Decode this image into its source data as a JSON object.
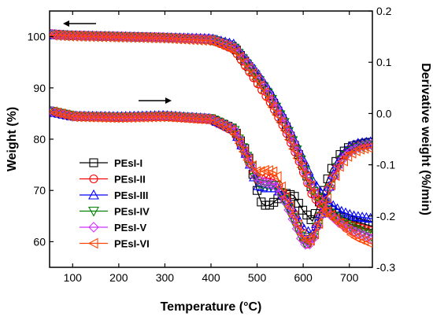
{
  "chart_data": {
    "type": "line",
    "title": "",
    "xlabel": "Temperature (°C)",
    "ylabel_left": "Weight (%)",
    "ylabel_right": "Derivative weight (%/min)",
    "xlim": [
      50,
      750
    ],
    "ylim_left": [
      55,
      105
    ],
    "ylim_right": [
      -0.3,
      0.2
    ],
    "x_ticks": [
      100,
      200,
      300,
      400,
      500,
      600,
      700
    ],
    "y_left_ticks": [
      60,
      70,
      80,
      90,
      100
    ],
    "y_right_ticks": [
      -0.3,
      -0.2,
      -0.1,
      0.0,
      0.1,
      0.2
    ],
    "y_right_tick_labels": [
      "-0.3",
      "-0.2",
      "-0.1",
      "0.0",
      "0.1",
      "0.2"
    ],
    "grid": false,
    "legend_position": "lower-left",
    "arrows": [
      {
        "label": "weight axis indicator",
        "direction": "left",
        "axis": "left"
      },
      {
        "label": "derivative axis indicator",
        "direction": "right",
        "axis": "right"
      }
    ],
    "series": [
      {
        "name": "PEsI-I",
        "color": "#000000",
        "marker": "square",
        "weight": {
          "x": [
            50,
            100,
            200,
            300,
            400,
            450,
            500,
            530,
            560,
            590,
            620,
            650,
            680,
            710,
            750
          ],
          "y": [
            100.5,
            100.2,
            100,
            99.8,
            99.5,
            98,
            92,
            88,
            83,
            77,
            70,
            67,
            65,
            64,
            63
          ]
        },
        "derivative": {
          "x": [
            50,
            100,
            200,
            300,
            400,
            450,
            480,
            500,
            510,
            520,
            530,
            540,
            560,
            580,
            600,
            620,
            640,
            660,
            680,
            700,
            720,
            750
          ],
          "y": [
            0.005,
            -0.005,
            -0.007,
            -0.005,
            -0.01,
            -0.03,
            -0.08,
            -0.15,
            -0.175,
            -0.18,
            -0.178,
            -0.17,
            -0.155,
            -0.16,
            -0.19,
            -0.21,
            -0.16,
            -0.11,
            -0.08,
            -0.065,
            -0.06,
            -0.055
          ]
        }
      },
      {
        "name": "PEsI-II",
        "color": "#ff0000",
        "marker": "circle",
        "weight": {
          "x": [
            50,
            100,
            200,
            300,
            400,
            450,
            500,
            530,
            560,
            590,
            620,
            650,
            680,
            710,
            750
          ],
          "y": [
            100.6,
            100.3,
            100.1,
            99.9,
            99.4,
            97.5,
            91,
            87,
            82,
            76,
            69,
            66,
            64,
            63,
            62
          ]
        },
        "derivative": {
          "x": [
            50,
            100,
            200,
            300,
            400,
            450,
            480,
            500,
            520,
            540,
            560,
            580,
            600,
            610,
            620,
            640,
            660,
            680,
            700,
            720,
            750
          ],
          "y": [
            0.005,
            -0.006,
            -0.008,
            -0.006,
            -0.012,
            -0.035,
            -0.09,
            -0.13,
            -0.125,
            -0.13,
            -0.16,
            -0.2,
            -0.245,
            -0.255,
            -0.24,
            -0.19,
            -0.13,
            -0.09,
            -0.07,
            -0.062,
            -0.06
          ]
        }
      },
      {
        "name": "PEsI-III",
        "color": "#0000ff",
        "marker": "triangle-up",
        "weight": {
          "x": [
            50,
            100,
            200,
            300,
            400,
            450,
            500,
            530,
            560,
            590,
            620,
            650,
            680,
            710,
            750
          ],
          "y": [
            100.4,
            100.2,
            100,
            99.8,
            99.6,
            98.5,
            93,
            89,
            84,
            78,
            72,
            68,
            66,
            65,
            64.5
          ]
        },
        "derivative": {
          "x": [
            50,
            100,
            200,
            300,
            400,
            450,
            480,
            500,
            520,
            540,
            560,
            580,
            600,
            620,
            640,
            660,
            680,
            700,
            720,
            750
          ],
          "y": [
            0.004,
            -0.005,
            -0.006,
            -0.004,
            -0.01,
            -0.03,
            -0.085,
            -0.14,
            -0.145,
            -0.145,
            -0.16,
            -0.19,
            -0.225,
            -0.235,
            -0.19,
            -0.13,
            -0.085,
            -0.065,
            -0.058,
            -0.055
          ]
        }
      },
      {
        "name": "PEsI-IV",
        "color": "#008000",
        "marker": "triangle-down",
        "weight": {
          "x": [
            50,
            100,
            200,
            300,
            400,
            450,
            500,
            530,
            560,
            590,
            620,
            650,
            680,
            710,
            750
          ],
          "y": [
            100.5,
            100.2,
            100,
            99.8,
            99.4,
            97.8,
            92,
            88,
            83,
            77,
            70,
            66,
            64,
            62.5,
            61
          ]
        },
        "derivative": {
          "x": [
            50,
            100,
            200,
            300,
            400,
            450,
            480,
            500,
            520,
            540,
            560,
            580,
            600,
            610,
            620,
            640,
            660,
            680,
            700,
            720,
            750
          ],
          "y": [
            0.005,
            -0.005,
            -0.007,
            -0.005,
            -0.01,
            -0.032,
            -0.088,
            -0.135,
            -0.14,
            -0.14,
            -0.17,
            -0.21,
            -0.25,
            -0.255,
            -0.245,
            -0.2,
            -0.14,
            -0.095,
            -0.075,
            -0.066,
            -0.06
          ]
        }
      },
      {
        "name": "PEsI-V",
        "color": "#cc33ff",
        "marker": "diamond",
        "weight": {
          "x": [
            50,
            100,
            200,
            300,
            400,
            450,
            500,
            530,
            560,
            590,
            620,
            650,
            680,
            710,
            750
          ],
          "y": [
            100.5,
            100.2,
            100,
            99.8,
            99.5,
            98,
            92.5,
            88,
            83,
            77,
            70,
            66,
            63.5,
            62,
            60.5
          ]
        },
        "derivative": {
          "x": [
            50,
            100,
            200,
            300,
            400,
            450,
            480,
            500,
            520,
            540,
            560,
            580,
            600,
            610,
            620,
            640,
            660,
            680,
            700,
            720,
            750
          ],
          "y": [
            0.005,
            -0.005,
            -0.007,
            -0.005,
            -0.01,
            -0.03,
            -0.085,
            -0.13,
            -0.135,
            -0.14,
            -0.17,
            -0.21,
            -0.252,
            -0.258,
            -0.25,
            -0.2,
            -0.14,
            -0.095,
            -0.075,
            -0.066,
            -0.06
          ]
        }
      },
      {
        "name": "PEsI-VI",
        "color": "#ff4500",
        "marker": "triangle-left",
        "weight": {
          "x": [
            50,
            100,
            200,
            300,
            400,
            450,
            500,
            530,
            560,
            590,
            620,
            650,
            680,
            710,
            750
          ],
          "y": [
            100.3,
            100.1,
            99.9,
            99.7,
            99.2,
            97.5,
            91.5,
            87,
            82,
            76,
            70,
            66,
            63.5,
            61,
            59.5
          ]
        },
        "derivative": {
          "x": [
            50,
            100,
            200,
            300,
            400,
            450,
            480,
            500,
            520,
            540,
            560,
            580,
            600,
            610,
            620,
            640,
            660,
            680,
            700,
            720,
            750
          ],
          "y": [
            0.005,
            -0.006,
            -0.008,
            -0.006,
            -0.012,
            -0.035,
            -0.09,
            -0.115,
            -0.11,
            -0.115,
            -0.16,
            -0.2,
            -0.24,
            -0.25,
            -0.245,
            -0.2,
            -0.14,
            -0.1,
            -0.08,
            -0.07,
            -0.065
          ]
        }
      }
    ]
  }
}
